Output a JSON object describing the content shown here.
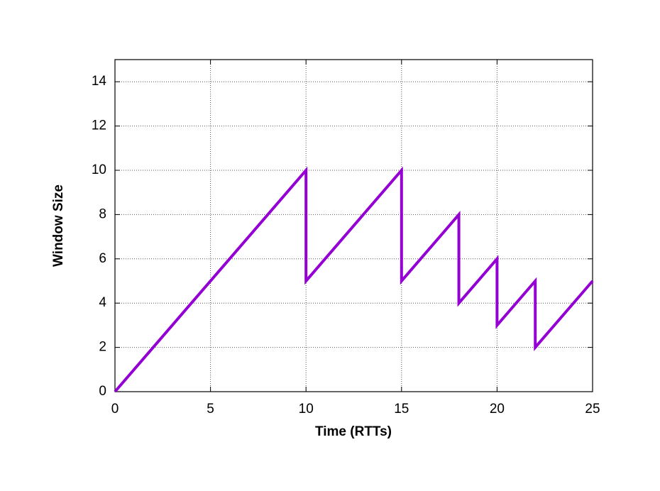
{
  "chart_data": {
    "type": "line",
    "x_label": "Time (RTTs)",
    "y_label": "Window Size",
    "x": [
      0,
      10,
      10,
      15,
      15,
      18,
      18,
      20,
      20,
      22,
      22,
      25
    ],
    "values": [
      0,
      10,
      5,
      10,
      5,
      8,
      4,
      6,
      3,
      5,
      2,
      5
    ],
    "color": "#9400d3",
    "xlim": [
      0,
      25
    ],
    "xticks": [
      0,
      5,
      10,
      15,
      20,
      25
    ],
    "ylim": [
      0,
      15
    ],
    "yticks": [
      0,
      2,
      4,
      6,
      8,
      10,
      12,
      14
    ],
    "grid": true
  }
}
